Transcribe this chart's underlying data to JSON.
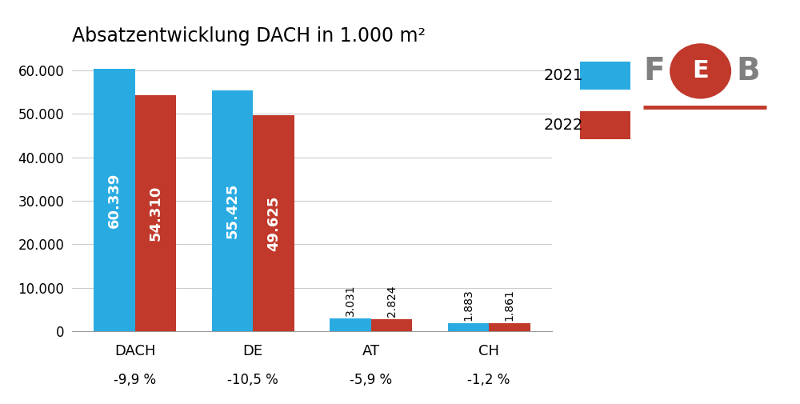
{
  "categories": [
    "DACH",
    "DE",
    "AT",
    "CH"
  ],
  "values_2021": [
    60339,
    55425,
    3031,
    1883
  ],
  "values_2022": [
    54310,
    49625,
    2824,
    1861
  ],
  "labels_2021": [
    "60.339",
    "55.425",
    "3.031",
    "1.883"
  ],
  "labels_2022": [
    "54.310",
    "49.625",
    "2.824",
    "1.861"
  ],
  "pct_changes": [
    "-9,9 %",
    "-10,5 %",
    "-5,9 %",
    "-1,2 %"
  ],
  "color_2021": "#29ABE2",
  "color_2022": "#C0392B",
  "color_grey": "#808080",
  "title": "Absatzentwicklung DACH in 1.000 m²",
  "legend_2021": "2021",
  "legend_2022": "2022",
  "ylim": [
    0,
    65000
  ],
  "yticks": [
    0,
    10000,
    20000,
    30000,
    40000,
    50000,
    60000
  ],
  "ytick_labels": [
    "0",
    "10.000",
    "20.000",
    "30.000",
    "40.000",
    "50.000",
    "60.000"
  ],
  "bar_width": 0.35,
  "background_color": "#FFFFFF",
  "grid_color": "#CCCCCC",
  "title_fontsize": 17,
  "axis_fontsize": 12,
  "bar_label_fontsize_large": 13,
  "bar_label_fontsize_small": 10,
  "pct_fontsize": 12
}
